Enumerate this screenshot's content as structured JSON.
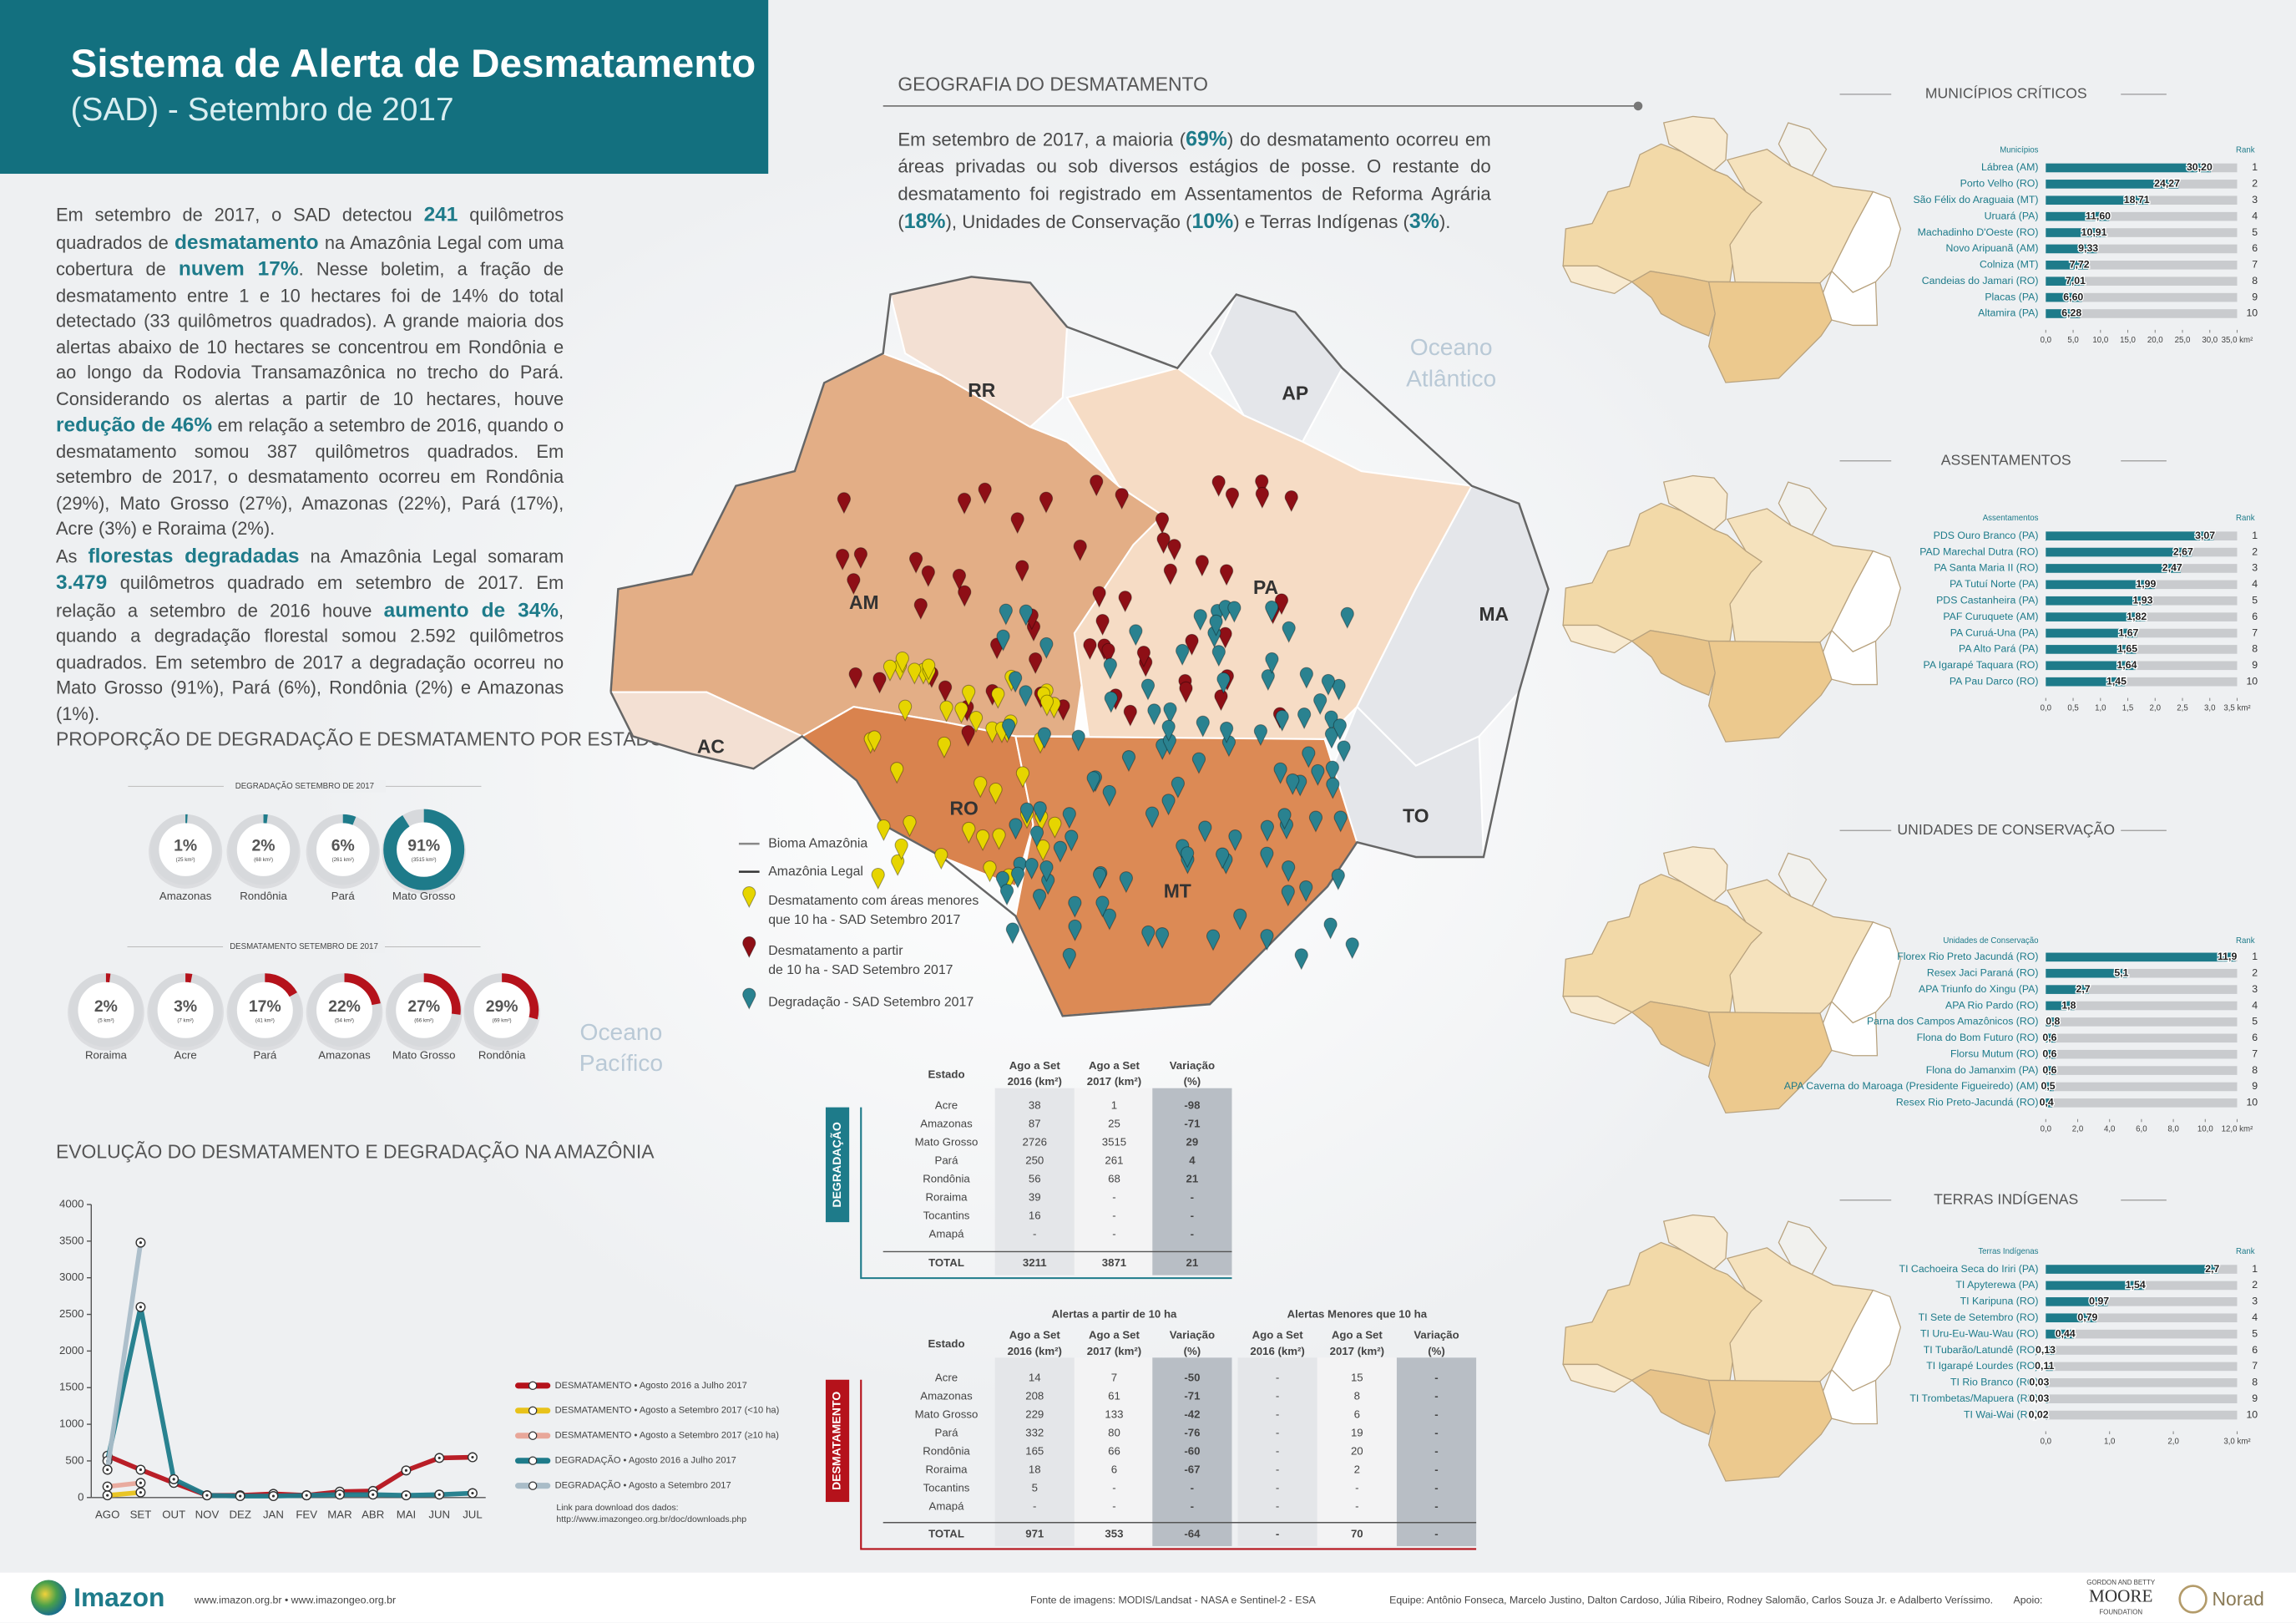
{
  "header": {
    "title": "Sistema de Alerta de Desmatamento",
    "subtitle": "(SAD) - Setembro de 2017"
  },
  "intro": {
    "paragraphs": [
      [
        {
          "text": "Em setembro de 2017, o SAD detectou "
        },
        {
          "text": "241",
          "bold": true
        },
        {
          "text": " quilômetros quadrados de "
        },
        {
          "text": "desmatamento",
          "bold": true
        },
        {
          "text": " na Amazônia Legal com uma cobertura de "
        },
        {
          "text": "nuvem 17%",
          "bold": true
        },
        {
          "text": ". Nesse boletim, a fração de desmatamento entre 1 e 10 hectares foi de 14% do total detectado (33 quilômetros quadrados). A grande maioria dos alertas abaixo de 10 hectares se concentrou em Rondônia e ao longo da Rodovia Transamazônica no trecho do Pará. Considerando os alertas a partir de 10 hectares, houve "
        },
        {
          "text": "redução de 46%",
          "bold": true
        },
        {
          "text": " em relação a setembro de 2016, quando o desmatamento somou 387 quilômetros quadrados. Em setembro de 2017, o desmatamento ocorreu em Rondônia (29%), Mato Grosso (27%), Amazonas (22%), Pará (17%), Acre (3%) e Roraima (2%)."
        }
      ],
      [
        {
          "text": "As "
        },
        {
          "text": "florestas degradadas",
          "bold": true
        },
        {
          "text": " na Amazônia Legal somaram "
        },
        {
          "text": "3.479",
          "bold": true
        },
        {
          "text": " quilômetros quadrado em setembro de 2017. Em relação a setembro de 2016 houve "
        },
        {
          "text": "aumento de 34%",
          "bold": true
        },
        {
          "text": ", quando a degradação florestal somou 2.592 quilômetros quadrados. Em setembro de 2017 a degradação ocorreu no Mato Grosso (91%), Pará (6%), Rondônia (2%) e Amazonas (1%)."
        }
      ]
    ]
  },
  "proportion_title": "PROPORÇÃO DE DEGRADAÇÃO E DESMATAMENTO POR ESTADO",
  "evolution_title": "EVOLUÇÃO DO DESMATAMENTO E DEGRADAÇÃO NA AMAZÔNIA",
  "download_note": [
    "Link para download dos dados:",
    "http://www.imazongeo.org.br/doc/downloads.php"
  ],
  "geography": {
    "title": "GEOGRAFIA DO DESMATAMENTO",
    "paragraph": [
      {
        "text": "Em setembro de 2017, a maioria ("
      },
      {
        "text": "69%",
        "bold": true
      },
      {
        "text": ") do desmatamento ocorreu em áreas privadas ou sob diversos estágios de posse. O restante do desmatamento foi registrado em Assentamentos de Reforma Agrária ("
      },
      {
        "text": "18%",
        "bold": true
      },
      {
        "text": "), Unidades de Conservação ("
      },
      {
        "text": "10%",
        "bold": true
      },
      {
        "text": ") e Terras Indígenas ("
      },
      {
        "text": "3%",
        "bold": true
      },
      {
        "text": ")."
      }
    ]
  },
  "map": {
    "state_labels": [
      "AM",
      "RR",
      "AP",
      "PA",
      "MA",
      "TO",
      "AC",
      "RO",
      "MT"
    ],
    "oceans": [
      [
        "Oceano",
        "Atlântico"
      ],
      [
        "Oceano",
        "Pacífico"
      ]
    ],
    "legend_lines": [
      "Bioma Amazônia",
      "Amazônia Legal"
    ],
    "legend_markers": [
      {
        "label": [
          "Desmatamento com áreas menores",
          "que 10 ha - SAD Setembro 2017"
        ],
        "color": "#e6d500"
      },
      {
        "label": [
          "Desmatamento a partir",
          "de 10 ha - SAD Setembro 2017"
        ],
        "color": "#8e0f16"
      },
      {
        "label": [
          "Degradação - SAD Setembro 2017"
        ],
        "color": "#2a8290"
      }
    ]
  },
  "degradation_table": {
    "label": "DEGRADAÇÃO",
    "columns": [
      "Estado",
      [
        "Ago a Set",
        "2016 (km²)"
      ],
      [
        "Ago a Set",
        "2017 (km²)"
      ],
      [
        "Variação",
        "(%)"
      ]
    ],
    "rows": [
      [
        "Acre",
        38,
        1,
        -98
      ],
      [
        "Amazonas",
        87,
        25,
        -71
      ],
      [
        "Mato Grosso",
        2726,
        3515,
        29
      ],
      [
        "Pará",
        250,
        261,
        4
      ],
      [
        "Rondônia",
        56,
        68,
        21
      ],
      [
        "Roraima",
        39,
        "-",
        "-"
      ],
      [
        "Tocantins",
        16,
        "-",
        "-"
      ],
      [
        "Amapá",
        "-",
        "-",
        "-"
      ]
    ],
    "total": [
      "TOTAL",
      3211,
      3871,
      21
    ]
  },
  "deforestation_table": {
    "label": "DESMATAMENTO",
    "groups": [
      "Alertas a partir de 10 ha",
      "Alertas Menores que 10 ha"
    ],
    "columns": [
      "Estado",
      [
        "Ago a Set",
        "2016 (km²)"
      ],
      [
        "Ago a Set",
        "2017 (km²)"
      ],
      [
        "Variação",
        "(%)"
      ],
      [
        "Ago a Set",
        "2016 (km²)"
      ],
      [
        "Ago a Set",
        "2017 (km²)"
      ],
      [
        "Variação",
        "(%)"
      ]
    ],
    "rows": [
      [
        "Acre",
        14,
        7,
        -50,
        "-",
        15,
        "-"
      ],
      [
        "Amazonas",
        208,
        61,
        -71,
        "-",
        8,
        "-"
      ],
      [
        "Mato Grosso",
        229,
        133,
        -42,
        "-",
        6,
        "-"
      ],
      [
        "Pará",
        332,
        80,
        -76,
        "-",
        19,
        "-"
      ],
      [
        "Rondônia",
        165,
        66,
        -60,
        "-",
        20,
        "-"
      ],
      [
        "Roraima",
        18,
        6,
        -67,
        "-",
        2,
        "-"
      ],
      [
        "Tocantins",
        5,
        "-",
        "-",
        "-",
        "-",
        "-"
      ],
      [
        "Amapá",
        "-",
        "-",
        "-",
        "-",
        "-",
        "-"
      ]
    ],
    "total": [
      "TOTAL",
      971,
      353,
      -64,
      "-",
      70,
      "-"
    ]
  },
  "footer": {
    "logo": "Imazon",
    "sites": "www.imazon.org.br • www.imazongeo.org.br",
    "source": "Fonte de imagens: MODIS/Landsat - NASA e Sentinel-2 - ESA",
    "team": "Equipe: Antônio Fonseca, Marcelo Justino, Dalton Cardoso, Júlia Ribeiro, Rodney Salomão, Carlos Souza Jr. e Adalberto Veríssimo.",
    "support": "Apoio:",
    "moore": [
      "GORDON AND BETTY",
      "MOORE",
      "FOUNDATION"
    ],
    "norad": "Norad"
  },
  "chart_data": [
    {
      "type": "donut",
      "title": "DEGRADAÇÃO SETEMBRO DE 2017",
      "categories": [
        "Amazonas",
        "Rondônia",
        "Pará",
        "Mato Grosso"
      ],
      "values": [
        1,
        2,
        6,
        91
      ],
      "value_labels": [
        "1%",
        "2%",
        "6%",
        "91%"
      ],
      "sublabels": [
        "(25 km²)",
        "(68 km²)",
        "(261 km²)",
        "(3515 km²)"
      ],
      "color": "#1e7b8a"
    },
    {
      "type": "donut",
      "title": "DESMATAMENTO SETEMBRO DE 2017",
      "categories": [
        "Roraima",
        "Acre",
        "Pará",
        "Amazonas",
        "Mato Grosso",
        "Rondônia"
      ],
      "values": [
        2,
        3,
        17,
        22,
        27,
        29
      ],
      "value_labels": [
        "2%",
        "3%",
        "17%",
        "22%",
        "27%",
        "29%"
      ],
      "sublabels": [
        "(5 km²)",
        "(7 km²)",
        "(41 km²)",
        "(54 km²)",
        "(66 km²)",
        "(69 km²)"
      ],
      "color": "#b5121b"
    },
    {
      "type": "line",
      "categories": [
        "AGO",
        "SET",
        "OUT",
        "NOV",
        "DEZ",
        "JAN",
        "FEV",
        "MAR",
        "ABR",
        "MAI",
        "JUN",
        "JUL"
      ],
      "ylim": [
        0,
        4000
      ],
      "yticks": [
        0,
        500,
        1000,
        1500,
        2000,
        2500,
        3000,
        3500,
        4000
      ],
      "series": [
        {
          "name": "DESMATAMENTO • Agosto 2016 a Julho 2017",
          "color": "#b5121b",
          "values": [
            570,
            380,
            200,
            30,
            30,
            50,
            30,
            80,
            90,
            370,
            540,
            550
          ]
        },
        {
          "name": "DESMATAMENTO • Agosto a Setembro 2017 (<10 ha)",
          "color": "#e8c21a",
          "values": [
            30,
            70,
            null,
            null,
            null,
            null,
            null,
            null,
            null,
            null,
            null,
            null
          ]
        },
        {
          "name": "DESMATAMENTO • Agosto a Setembro 2017 (≥10 ha)",
          "color": "#e8a79a",
          "values": [
            150,
            200,
            null,
            null,
            null,
            null,
            null,
            null,
            null,
            null,
            null,
            null
          ]
        },
        {
          "name": "DEGRADAÇÃO • Agosto 2016 a Julho 2017",
          "color": "#1e7b8a",
          "values": [
            500,
            2600,
            250,
            30,
            20,
            20,
            30,
            40,
            40,
            30,
            40,
            60
          ]
        },
        {
          "name": "DEGRADAÇÃO • Agosto a Setembro 2017",
          "color": "#a9bcc8",
          "values": [
            380,
            3480,
            null,
            null,
            null,
            null,
            null,
            null,
            null,
            null,
            null,
            null
          ]
        }
      ]
    },
    {
      "type": "hbar",
      "title": "MUNICÍPIOS CRÍTICOS",
      "category_header": "Municípios",
      "rank_header": "Rank",
      "color": "#1e7b8a",
      "categories": [
        "Lábrea (AM)",
        "Porto Velho (RO)",
        "São Félix do Araguaia (MT)",
        "Uruará (PA)",
        "Machadinho D'Oeste (RO)",
        "Novo Aripuanã (AM)",
        "Colniza (MT)",
        "Candeias do Jamari (RO)",
        "Placas (PA)",
        "Altamira (PA)"
      ],
      "values": [
        30.2,
        24.27,
        18.71,
        11.6,
        10.91,
        9.33,
        7.72,
        7.01,
        6.6,
        6.28
      ],
      "value_labels": [
        "30,20",
        "24,27",
        "18,71",
        "11,60",
        "10,91",
        "9,33",
        "7,72",
        "7,01",
        "6,60",
        "6,28"
      ],
      "ranks": [
        1,
        2,
        3,
        4,
        5,
        6,
        7,
        8,
        9,
        10
      ],
      "xlim": [
        0,
        35
      ],
      "xticks": [
        {
          "value": 0,
          "label": "0,0"
        },
        {
          "value": 5,
          "label": "5,0"
        },
        {
          "value": 10,
          "label": "10,0"
        },
        {
          "value": 15,
          "label": "15,0"
        },
        {
          "value": 20,
          "label": "20,0"
        },
        {
          "value": 25,
          "label": "25,0"
        },
        {
          "value": 30,
          "label": "30,0"
        },
        {
          "value": 35,
          "label": "35,0 km²"
        }
      ]
    },
    {
      "type": "hbar",
      "title": "ASSENTAMENTOS",
      "category_header": "Assentamentos",
      "rank_header": "Rank",
      "color": "#1e7b8a",
      "categories": [
        "PDS Ouro Branco (PA)",
        "PAD Marechal Dutra (RO)",
        "PA Santa Maria II (RO)",
        "PA Tutuí Norte (PA)",
        "PDS Castanheira (PA)",
        "PAF Curuquete (AM)",
        "PA Curuá-Una (PA)",
        "PA Alto Pará (PA)",
        "PA Igarapé Taquara (RO)",
        "PA Pau Darco (RO)"
      ],
      "values": [
        3.07,
        2.67,
        2.47,
        1.99,
        1.93,
        1.82,
        1.67,
        1.65,
        1.64,
        1.45
      ],
      "value_labels": [
        "3,07",
        "2,67",
        "2,47",
        "1,99",
        "1,93",
        "1,82",
        "1,67",
        "1,65",
        "1,64",
        "1,45"
      ],
      "ranks": [
        1,
        2,
        3,
        4,
        5,
        6,
        7,
        8,
        9,
        10
      ],
      "xlim": [
        0,
        3.5
      ],
      "xticks": [
        {
          "value": 0,
          "label": "0,0"
        },
        {
          "value": 0.5,
          "label": "0,5"
        },
        {
          "value": 1,
          "label": "1,0"
        },
        {
          "value": 1.5,
          "label": "1,5"
        },
        {
          "value": 2,
          "label": "2,0"
        },
        {
          "value": 2.5,
          "label": "2,5"
        },
        {
          "value": 3,
          "label": "3,0"
        },
        {
          "value": 3.5,
          "label": "3,5 km²"
        }
      ]
    },
    {
      "type": "hbar",
      "title": "UNIDADES DE CONSERVAÇÃO",
      "category_header": "Unidades de Conservação",
      "rank_header": "Rank",
      "color": "#1e7b8a",
      "categories": [
        "Florex Rio Preto Jacundá (RO)",
        "Resex Jaci Paraná (RO)",
        "APA Triunfo do Xingu (PA)",
        "APA Rio Pardo (RO)",
        "Parna dos Campos Amazônicos (RO)",
        "Flona do Bom Futuro (RO)",
        "Florsu Mutum (RO)",
        "Flona do Jamanxim (PA)",
        "APA Caverna do Maroaga (Presidente Figueiredo) (AM)",
        "Resex Rio Preto-Jacundá (RO)"
      ],
      "values": [
        11.9,
        5.1,
        2.7,
        1.8,
        0.8,
        0.6,
        0.6,
        0.6,
        0.5,
        0.4
      ],
      "value_labels": [
        "11,9",
        "5,1",
        "2,7",
        "1,8",
        "0,8",
        "0,6",
        "0,6",
        "0,6",
        "0,5",
        "0,4"
      ],
      "ranks": [
        1,
        2,
        3,
        4,
        5,
        6,
        7,
        8,
        9,
        10
      ],
      "xlim": [
        0,
        12
      ],
      "xticks": [
        {
          "value": 0,
          "label": "0,0"
        },
        {
          "value": 2,
          "label": "2,0"
        },
        {
          "value": 4,
          "label": "4,0"
        },
        {
          "value": 6,
          "label": "6,0"
        },
        {
          "value": 8,
          "label": "8,0"
        },
        {
          "value": 10,
          "label": "10,0"
        },
        {
          "value": 12,
          "label": "12,0 km²"
        }
      ]
    },
    {
      "type": "hbar",
      "title": "TERRAS INDÍGENAS",
      "category_header": "Terras Indígenas",
      "rank_header": "Rank",
      "color": "#1e7b8a",
      "categories": [
        "TI Cachoeira Seca do Iriri (PA)",
        "TI Apyterewa (PA)",
        "TI Karipuna (RO)",
        "TI Sete de Setembro (RO)",
        "TI Uru-Eu-Wau-Wau (RO)",
        "TI Tubarão/Latundê (RO)",
        "TI Igarapé Lourdes (RO)",
        "TI Rio Branco (RO)",
        "TI Trombetas/Mapuera (RR)",
        "TI Wai-Wai (RR)"
      ],
      "values": [
        2.7,
        1.54,
        0.97,
        0.79,
        0.44,
        0.13,
        0.11,
        0.03,
        0.03,
        0.02
      ],
      "value_labels": [
        "2,7",
        "1,54",
        "0,97",
        "0,79",
        "0,44",
        "0,13",
        "0,11",
        "0,03",
        "0,03",
        "0,02"
      ],
      "ranks": [
        1,
        2,
        3,
        4,
        5,
        6,
        7,
        8,
        9,
        10
      ],
      "xlim": [
        0,
        3
      ],
      "xticks": [
        {
          "value": 0,
          "label": "0,0"
        },
        {
          "value": 1,
          "label": "1,0"
        },
        {
          "value": 2,
          "label": "2,0"
        },
        {
          "value": 3,
          "label": "3,0 km²"
        }
      ]
    }
  ]
}
